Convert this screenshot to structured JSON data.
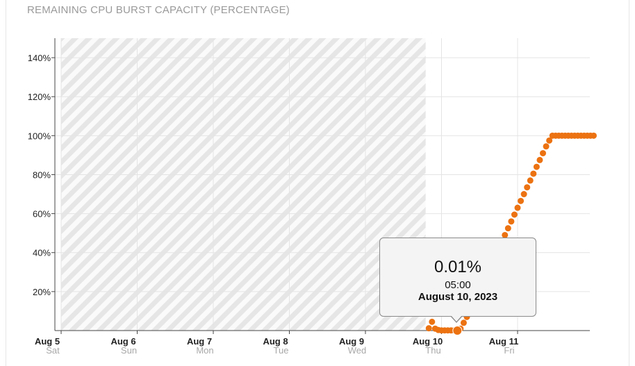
{
  "title": "REMAINING CPU BURST CAPACITY (PERCENTAGE)",
  "tooltip": {
    "value": "0.01%",
    "time": "05:00",
    "date": "August 10, 2023"
  },
  "colors": {
    "series": "#ec7211",
    "grid": "#e4e4e4",
    "axis": "#444444",
    "hatch": "#e2e2e2"
  },
  "chart_data": {
    "type": "scatter",
    "title": "REMAINING CPU BURST CAPACITY (PERCENTAGE)",
    "ylim": [
      0,
      150
    ],
    "y_ticks": [
      20,
      40,
      60,
      80,
      100,
      120,
      140
    ],
    "y_tick_labels": [
      "20%",
      "40%",
      "60%",
      "80%",
      "100%",
      "120%",
      "140%"
    ],
    "x_unit": "days",
    "x_ticks": [
      {
        "date": "Aug 5",
        "day": "Sat"
      },
      {
        "date": "Aug 6",
        "day": "Sun"
      },
      {
        "date": "Aug 7",
        "day": "Mon"
      },
      {
        "date": "Aug 8",
        "day": "Tue"
      },
      {
        "date": "Aug 9",
        "day": "Wed"
      },
      {
        "date": "Aug 10",
        "day": "Thu"
      },
      {
        "date": "Aug 11",
        "day": "Fri"
      }
    ],
    "no_data_region": [
      "Aug 5",
      "Aug 9 19:00"
    ],
    "series": [
      {
        "x": [
          "Aug 9 20:00",
          "Aug 9 21:00",
          "Aug 9 22:00",
          "Aug 9 23:00",
          "Aug 10 00:00",
          "Aug 10 01:00",
          "Aug 10 02:00",
          "Aug 10 03:00",
          "Aug 10 04:00",
          "Aug 10 05:00",
          "Aug 10 06:00",
          "Aug 10 07:00",
          "Aug 10 08:00",
          "Aug 10 09:00",
          "Aug 10 10:00",
          "Aug 10 11:00",
          "Aug 10 12:00",
          "Aug 10 13:00",
          "Aug 10 14:00",
          "Aug 10 15:00",
          "Aug 10 16:00",
          "Aug 10 17:00",
          "Aug 10 18:00",
          "Aug 10 19:00",
          "Aug 10 20:00",
          "Aug 10 21:00",
          "Aug 10 22:00",
          "Aug 10 23:00",
          "Aug 11 00:00",
          "Aug 11 01:00",
          "Aug 11 02:00",
          "Aug 11 03:00",
          "Aug 11 04:00",
          "Aug 11 05:00",
          "Aug 11 06:00",
          "Aug 11 07:00",
          "Aug 11 08:00",
          "Aug 11 09:00",
          "Aug 11 10:00",
          "Aug 11 11:00",
          "Aug 11 12:00",
          "Aug 11 13:00",
          "Aug 11 14:00",
          "Aug 11 15:00",
          "Aug 11 16:00",
          "Aug 11 17:00",
          "Aug 11 18:00",
          "Aug 11 19:00",
          "Aug 11 20:00",
          "Aug 11 21:00",
          "Aug 11 22:00",
          "Aug 11 23:00",
          "Aug 12 00:00"
        ],
        "y": [
          1.2,
          4.5,
          1,
          0.3,
          0.1,
          0.1,
          0.1,
          0.1,
          0.1,
          0.01,
          1,
          4,
          7,
          10.5,
          14,
          17.5,
          21,
          24.5,
          28,
          31.5,
          35,
          38.5,
          42,
          45.5,
          49,
          52.5,
          56,
          59.5,
          63,
          66.5,
          70,
          73.5,
          77,
          80.5,
          84,
          87.5,
          91,
          94.5,
          97.5,
          100,
          100,
          100,
          100,
          100,
          100,
          100,
          100,
          100,
          100,
          100,
          100,
          100,
          100
        ]
      }
    ],
    "highlight": {
      "x": "Aug 10 05:00",
      "y": 0.01
    }
  }
}
